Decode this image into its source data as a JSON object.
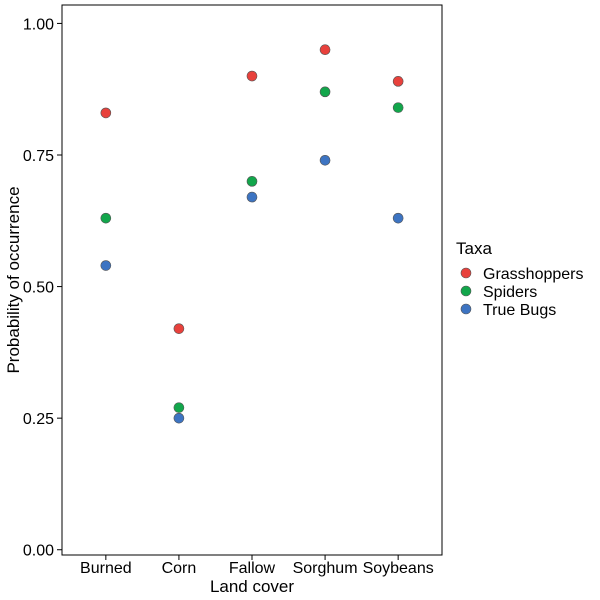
{
  "chart_data": {
    "type": "scatter",
    "title": "",
    "xlabel": "Land cover",
    "ylabel": "Probability of occurrence",
    "categories": [
      "Burned",
      "Corn",
      "Fallow",
      "Sorghum",
      "Soybeans"
    ],
    "ylim": [
      -0.01,
      1.035
    ],
    "yticks": [
      0.0,
      0.25,
      0.5,
      0.75,
      1.0
    ],
    "ytick_labels": [
      "0.00",
      "0.25",
      "0.50",
      "0.75",
      "1.00"
    ],
    "grid": false,
    "legend": {
      "title": "Taxa",
      "placement": "right"
    },
    "series": [
      {
        "name": "Grasshoppers",
        "color": "#e8413c",
        "values": [
          0.83,
          0.42,
          0.9,
          0.95,
          0.89
        ]
      },
      {
        "name": "Spiders",
        "color": "#12a64b",
        "values": [
          0.63,
          0.27,
          0.7,
          0.87,
          0.84
        ]
      },
      {
        "name": "True Bugs",
        "color": "#3d74c2",
        "values": [
          0.54,
          0.25,
          0.67,
          0.74,
          0.63
        ]
      }
    ]
  }
}
